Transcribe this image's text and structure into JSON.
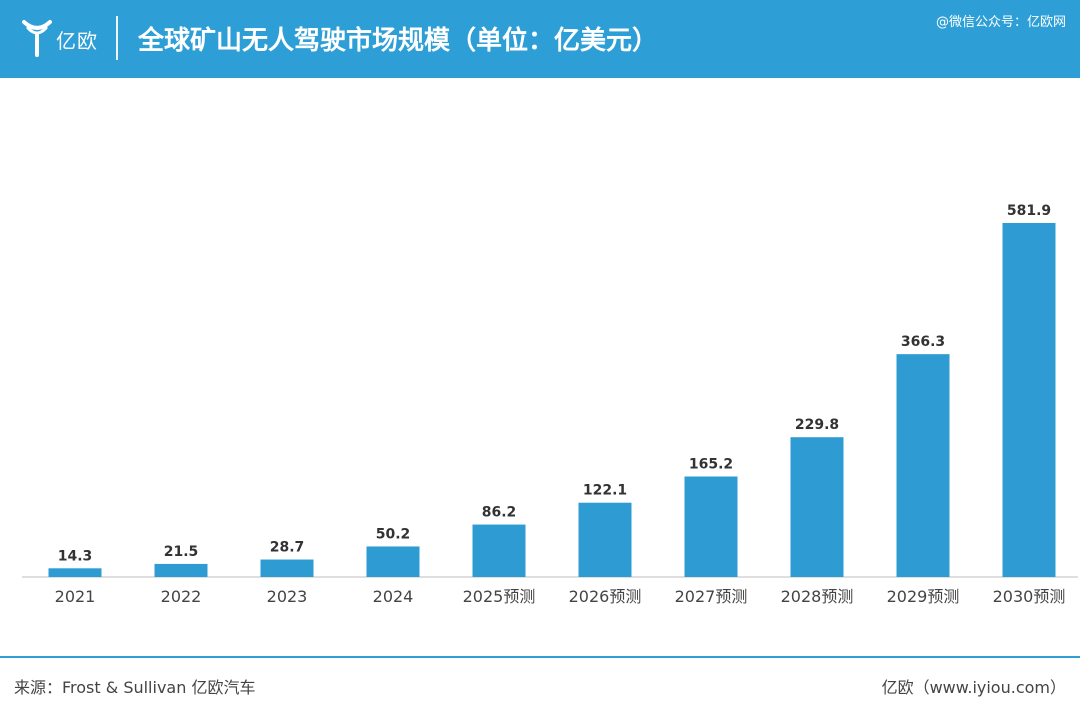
{
  "header": {
    "logo_text": "亿欧",
    "title": "全球矿山无人驾驶市场规模（单位：亿美元）",
    "watermark": "@微信公众号：亿欧网",
    "brand_color": "#2e9fd6"
  },
  "footer": {
    "source": "来源：Frost & Sullivan 亿欧汽车",
    "site": "亿欧（www.iyiou.com）"
  },
  "chart_data": {
    "type": "bar",
    "title": "全球矿山无人驾驶市场规模（单位：亿美元）",
    "categories": [
      "2021",
      "2022",
      "2023",
      "2024",
      "2025预测",
      "2026预测",
      "2027预测",
      "2028预测",
      "2029预测",
      "2030预测"
    ],
    "values": [
      14.3,
      21.5,
      28.7,
      50.2,
      86.2,
      122.1,
      165.2,
      229.8,
      366.3,
      581.9
    ],
    "value_labels": [
      "14.3",
      "21.5",
      "28.7",
      "50.2",
      "86.2",
      "122.1",
      "165.2",
      "229.8",
      "366.3",
      "581.9"
    ],
    "xlabel": "",
    "ylabel": "",
    "ylim": [
      0,
      600
    ],
    "grid": false,
    "bar_color": "#2f9bd3"
  }
}
